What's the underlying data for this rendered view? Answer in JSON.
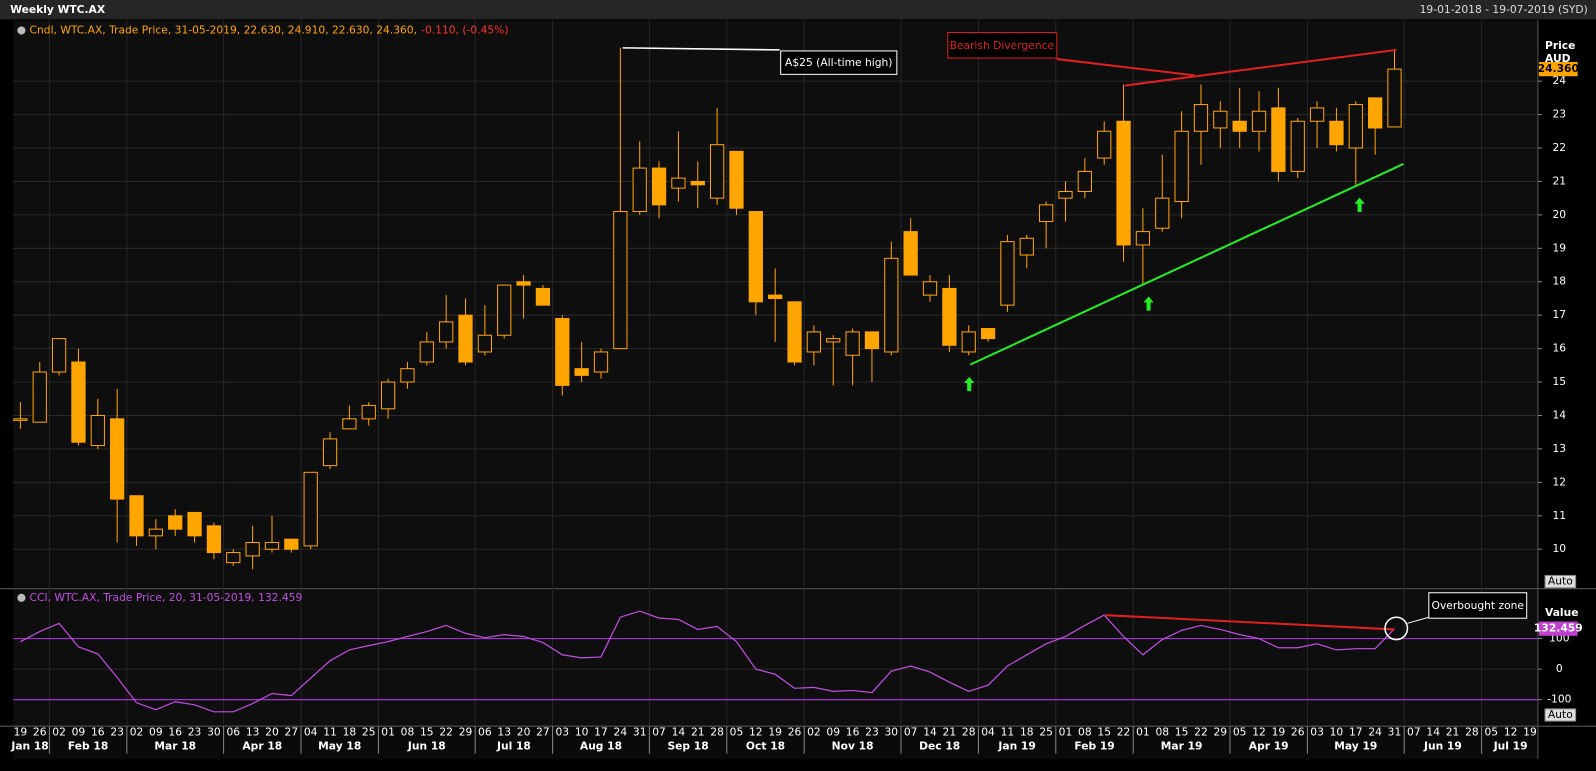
{
  "chart_data": [
    {
      "type": "candlestick",
      "title": "Weekly WTC.AX",
      "subtitle": "19-01-2018 - 19-07-2019 (SYD)",
      "legend": "Cndl, WTC.AX, Trade Price, 31-05-2019, 22.630, 24.910, 22.630, 24.360,",
      "change": "-0.110, (-0.45%)",
      "y_axis_label": "Price",
      "y_axis_unit": "AUD",
      "close_label": "24.360",
      "auto_label": "Auto",
      "annotations": [
        "A$25 (All-time high)",
        "Bearish Divergence"
      ],
      "color": "#ffa500",
      "grid": true,
      "categories": [
        "19",
        "26",
        "02",
        "09",
        "16",
        "23",
        "02",
        "09",
        "16",
        "23",
        "30",
        "06",
        "13",
        "20",
        "27",
        "04",
        "11",
        "18",
        "25",
        "01",
        "08",
        "15",
        "22",
        "29",
        "06",
        "13",
        "20",
        "27",
        "03",
        "10",
        "17",
        "24",
        "31",
        "07",
        "14",
        "21",
        "28",
        "05",
        "12",
        "19",
        "26",
        "02",
        "09",
        "16",
        "23",
        "30",
        "07",
        "14",
        "21",
        "28",
        "04",
        "11",
        "18",
        "25",
        "01",
        "08",
        "15",
        "22",
        "01",
        "08",
        "15",
        "22",
        "29",
        "05",
        "12",
        "19",
        "26",
        "03",
        "10",
        "17",
        "24",
        "31",
        "07",
        "14",
        "21",
        "28",
        "05",
        "12",
        "19"
      ],
      "months": [
        "Jan 18",
        "Feb 18",
        "Mar 18",
        "Apr 18",
        "May 18",
        "Jun 18",
        "Jul 18",
        "Aug 18",
        "Sep 18",
        "Oct 18",
        "Nov 18",
        "Dec 18",
        "Jan 19",
        "Feb 19",
        "Mar 19",
        "Apr 19",
        "May 19",
        "Jun 19",
        "Jul 19"
      ],
      "open": [
        13.9,
        13.8,
        15.3,
        15.6,
        13.1,
        13.9,
        11.6,
        10.4,
        11.0,
        11.1,
        10.7,
        9.6,
        9.8,
        10.0,
        10.3,
        10.1,
        12.5,
        13.6,
        13.9,
        14.2,
        15.0,
        15.6,
        16.2,
        17.0,
        15.9,
        16.4,
        18.0,
        17.8,
        16.9,
        15.4,
        15.3,
        16.0,
        20.1,
        21.4,
        20.8,
        21.0,
        20.5,
        21.9,
        20.1,
        17.6,
        17.4,
        15.9,
        16.2,
        15.8,
        16.5,
        15.9,
        19.5,
        17.6,
        17.8,
        15.9,
        16.6,
        17.3,
        18.8,
        19.8,
        20.5,
        20.7,
        21.7,
        22.8,
        19.1,
        19.6,
        20.4,
        22.5,
        22.6,
        22.8,
        22.5,
        23.2,
        21.3,
        22.8,
        22.8,
        22.0,
        23.5,
        22.63,
        null,
        null,
        null,
        null,
        null,
        null,
        null
      ],
      "high": [
        14.4,
        15.6,
        16.3,
        16.0,
        14.5,
        14.8,
        11.6,
        10.9,
        11.2,
        11.1,
        10.8,
        10.0,
        10.7,
        11.0,
        10.3,
        12.3,
        13.5,
        14.3,
        14.4,
        15.1,
        15.6,
        16.5,
        17.6,
        17.5,
        17.3,
        17.9,
        18.2,
        17.9,
        17.0,
        16.2,
        16.0,
        25.0,
        22.2,
        21.6,
        22.5,
        21.6,
        23.2,
        21.9,
        20.1,
        18.4,
        17.4,
        16.7,
        16.4,
        16.6,
        16.5,
        19.2,
        19.9,
        18.2,
        18.2,
        16.7,
        16.6,
        19.4,
        19.4,
        20.4,
        21.0,
        21.7,
        22.8,
        23.9,
        20.2,
        21.8,
        23.1,
        23.9,
        23.4,
        23.8,
        23.7,
        23.8,
        22.9,
        23.4,
        23.2,
        23.4,
        23.5,
        24.91,
        null,
        null,
        null,
        null,
        null,
        null,
        null
      ],
      "low": [
        13.6,
        13.8,
        15.2,
        13.1,
        13.0,
        10.2,
        10.1,
        10.0,
        10.4,
        10.2,
        9.7,
        9.5,
        9.4,
        9.9,
        9.9,
        10.0,
        12.4,
        13.6,
        13.7,
        13.9,
        14.8,
        15.5,
        16.0,
        15.5,
        15.8,
        16.3,
        16.9,
        17.3,
        14.6,
        15.0,
        15.1,
        16.0,
        20.0,
        19.9,
        20.4,
        20.2,
        20.3,
        20.0,
        17.0,
        16.2,
        15.5,
        15.5,
        14.9,
        14.9,
        15.0,
        15.8,
        18.2,
        17.4,
        15.9,
        15.8,
        16.2,
        17.1,
        18.4,
        19.0,
        19.8,
        20.5,
        21.5,
        18.6,
        17.9,
        19.5,
        19.9,
        21.5,
        22.0,
        22.0,
        21.9,
        21.0,
        21.1,
        22.0,
        21.9,
        20.9,
        21.8,
        22.63,
        null,
        null,
        null,
        null,
        null,
        null,
        null
      ],
      "close": [
        13.9,
        15.3,
        16.3,
        13.2,
        14.0,
        11.5,
        10.4,
        10.6,
        10.6,
        10.4,
        9.9,
        9.9,
        10.2,
        10.2,
        10.0,
        12.3,
        13.3,
        13.9,
        14.3,
        15.0,
        15.4,
        16.2,
        16.8,
        15.6,
        16.4,
        17.9,
        17.9,
        17.3,
        14.9,
        15.2,
        15.9,
        20.1,
        21.4,
        20.3,
        21.1,
        20.9,
        22.1,
        20.2,
        17.4,
        17.5,
        15.6,
        16.5,
        16.3,
        16.5,
        16.0,
        18.7,
        18.2,
        18.0,
        16.1,
        16.5,
        16.3,
        19.2,
        19.3,
        20.3,
        20.7,
        21.3,
        22.5,
        19.1,
        19.5,
        20.5,
        22.5,
        23.3,
        23.1,
        22.5,
        23.1,
        21.3,
        22.8,
        23.2,
        22.1,
        23.3,
        22.6,
        24.36,
        null,
        null,
        null,
        null,
        null,
        null,
        null
      ],
      "ylim": [
        8.85,
        25.3
      ],
      "yticks": [
        10,
        11,
        12,
        13,
        14,
        15,
        16,
        17,
        18,
        19,
        20,
        21,
        22,
        23,
        24
      ]
    },
    {
      "type": "line",
      "legend": "CCI, WTC.AX, Trade Price, 20, 31-05-2019, 132.459",
      "y_axis_label": "Value",
      "value_label": "132.459",
      "auto_label": "Auto",
      "annotation": "Overbought zone",
      "color": "#c050e0",
      "levels": [
        100,
        -100
      ],
      "values": [
        90,
        123,
        150,
        73,
        50,
        -27,
        -110,
        -133,
        -107,
        -117,
        -140,
        -140,
        -113,
        -80,
        -87,
        -30,
        27,
        63,
        77,
        90,
        107,
        123,
        143,
        117,
        103,
        113,
        107,
        87,
        47,
        37,
        40,
        170,
        190,
        167,
        163,
        130,
        140,
        90,
        0,
        -17,
        -63,
        -60,
        -73,
        -70,
        -77,
        -7,
        10,
        -10,
        -43,
        -73,
        -53,
        10,
        47,
        83,
        107,
        143,
        177,
        107,
        47,
        97,
        127,
        143,
        130,
        113,
        100,
        70,
        70,
        83,
        63,
        67,
        67,
        132.459,
        null,
        null,
        null,
        null,
        null,
        null,
        null
      ],
      "ylim": [
        -187,
        260
      ],
      "yticks": [
        -100,
        0,
        100
      ]
    }
  ]
}
